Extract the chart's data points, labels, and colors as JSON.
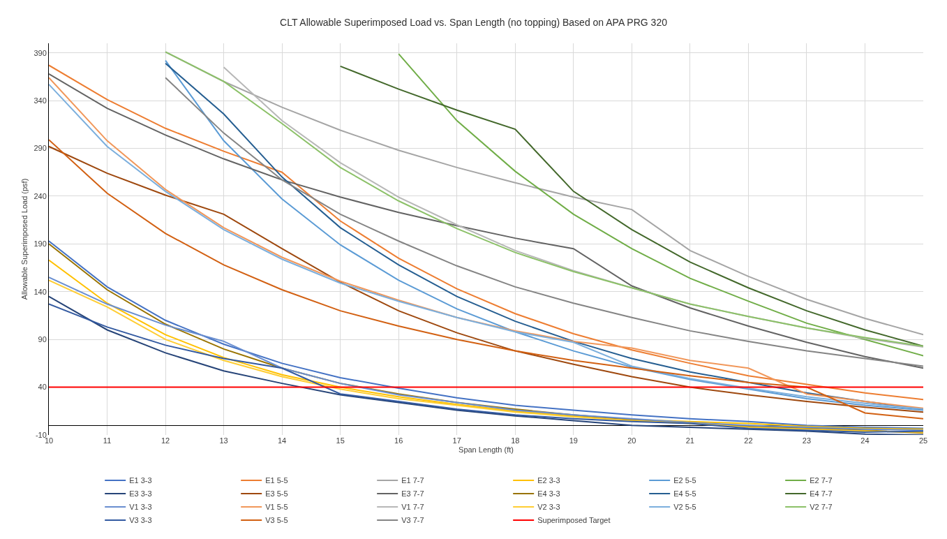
{
  "chart_data": {
    "type": "line",
    "title": "CLT Allowable Superimposed Load vs. Span Length (no topping) Based on APA PRG 320",
    "xlabel": "Span Length (ft)",
    "ylabel": "Allowable Superimposed Load (psf)",
    "x": [
      10,
      11,
      12,
      13,
      14,
      15,
      16,
      17,
      18,
      19,
      20,
      21,
      22,
      23,
      24,
      25
    ],
    "xlim": [
      10,
      25
    ],
    "xticks": [
      10,
      11,
      12,
      13,
      14,
      15,
      16,
      17,
      18,
      19,
      20,
      21,
      22,
      23,
      24,
      25
    ],
    "ylim": [
      -10,
      400
    ],
    "yticks": [
      -10,
      40,
      90,
      140,
      190,
      240,
      290,
      340,
      390
    ],
    "grid": true,
    "legend": "bottom",
    "marker": "none",
    "line_style": "solid",
    "series": [
      {
        "name": "E1 3-3",
        "color": "#4472c4",
        "values": [
          193,
          145,
          110,
          85,
          65,
          50,
          39,
          29,
          21,
          16,
          11,
          7,
          4,
          0,
          -2,
          -3
        ]
      },
      {
        "name": "E1 5-5",
        "color": "#ed7d31",
        "values": [
          377,
          341,
          311,
          287,
          265,
          214,
          175,
          143,
          117,
          96,
          79,
          65,
          52,
          43,
          34,
          27
        ]
      },
      {
        "name": "E1 7-7",
        "color": "#a5a5a5",
        "values": [
          null,
          null,
          391,
          360,
          333,
          309,
          288,
          270,
          254,
          239,
          226,
          183,
          156,
          132,
          112,
          95
        ]
      },
      {
        "name": "E2 3-3",
        "color": "#ffc000",
        "values": [
          173,
          128,
          95,
          71,
          53,
          40,
          30,
          22,
          15,
          10,
          6,
          4,
          2,
          -1,
          -3,
          -4
        ]
      },
      {
        "name": "E2 5-5",
        "color": "#5b9bd5",
        "values": [
          null,
          null,
          382,
          298,
          237,
          189,
          152,
          122,
          98,
          78,
          61,
          48,
          38,
          28,
          21,
          16
        ]
      },
      {
        "name": "E2 7-7",
        "color": "#70ad47",
        "values": [
          null,
          null,
          null,
          null,
          null,
          null,
          389,
          319,
          266,
          221,
          185,
          154,
          130,
          107,
          90,
          73
        ]
      },
      {
        "name": "E3 3-3",
        "color": "#264478",
        "values": [
          135,
          100,
          76,
          57,
          44,
          32,
          24,
          16,
          10,
          5,
          0,
          -2,
          -4,
          -6,
          -9,
          -10
        ]
      },
      {
        "name": "E3 5-5",
        "color": "#9e480e",
        "values": [
          292,
          264,
          241,
          221,
          185,
          150,
          120,
          97,
          78,
          64,
          51,
          40,
          32,
          25,
          19,
          14
        ]
      },
      {
        "name": "E3 7-7",
        "color": "#636363",
        "values": [
          368,
          332,
          304,
          279,
          257,
          239,
          223,
          209,
          196,
          185,
          146,
          123,
          104,
          87,
          72,
          60
        ]
      },
      {
        "name": "E4 3-3",
        "color": "#997300",
        "values": [
          190,
          142,
          106,
          80,
          60,
          44,
          33,
          24,
          17,
          11,
          6,
          3,
          -1,
          -3,
          -5,
          -8
        ]
      },
      {
        "name": "E4 5-5",
        "color": "#255e91",
        "values": [
          null,
          null,
          379,
          326,
          260,
          207,
          168,
          135,
          109,
          88,
          70,
          56,
          45,
          34,
          25,
          17
        ]
      },
      {
        "name": "E4 7-7",
        "color": "#43682b",
        "values": [
          null,
          null,
          null,
          null,
          null,
          376,
          352,
          330,
          310,
          245,
          205,
          171,
          144,
          120,
          100,
          83
        ]
      },
      {
        "name": "V1 3-3",
        "color": "#698ed0",
        "values": [
          155,
          127,
          105,
          88,
          60,
          44,
          32,
          24,
          16,
          11,
          7,
          3,
          0,
          -2,
          -4,
          -5
        ]
      },
      {
        "name": "V1 5-5",
        "color": "#f1975a",
        "values": [
          364,
          298,
          247,
          207,
          176,
          151,
          131,
          113,
          99,
          88,
          81,
          68,
          60,
          33,
          25,
          18
        ]
      },
      {
        "name": "V1 7-7",
        "color": "#b7b7b7",
        "values": [
          null,
          null,
          null,
          375,
          319,
          275,
          239,
          210,
          183,
          162,
          144,
          127,
          114,
          102,
          91,
          82
        ]
      },
      {
        "name": "V2 3-3",
        "color": "#ffcd33",
        "values": [
          152,
          124,
          90,
          68,
          51,
          38,
          28,
          21,
          14,
          9,
          5,
          2,
          -2,
          -4,
          -6,
          -7
        ]
      },
      {
        "name": "V2 5-5",
        "color": "#7cafdd",
        "values": [
          357,
          292,
          245,
          205,
          174,
          149,
          130,
          113,
          98,
          87,
          62,
          49,
          39,
          30,
          23,
          17
        ]
      },
      {
        "name": "V2 7-7",
        "color": "#8cc168",
        "values": [
          null,
          null,
          391,
          360,
          316,
          270,
          235,
          206,
          181,
          161,
          144,
          127,
          114,
          102,
          92,
          83
        ]
      },
      {
        "name": "V3 3-3",
        "color": "#335aa1",
        "values": [
          127,
          103,
          84,
          70,
          60,
          33,
          25,
          17,
          11,
          7,
          4,
          2,
          -3,
          -5,
          -7,
          -6
        ]
      },
      {
        "name": "V3 5-5",
        "color": "#d26012",
        "values": [
          299,
          243,
          201,
          168,
          142,
          120,
          104,
          90,
          78,
          68,
          60,
          52,
          45,
          40,
          13,
          7
        ]
      },
      {
        "name": "V3 7-7",
        "color": "#848484",
        "values": [
          null,
          null,
          364,
          306,
          257,
          221,
          193,
          167,
          145,
          128,
          113,
          99,
          88,
          78,
          70,
          62
        ]
      },
      {
        "name": "Superimposed Target",
        "color": "#ff0000",
        "values": [
          40,
          40,
          40,
          40,
          40,
          40,
          40,
          40,
          40,
          40,
          40,
          40,
          40,
          40,
          40,
          40
        ]
      }
    ]
  }
}
